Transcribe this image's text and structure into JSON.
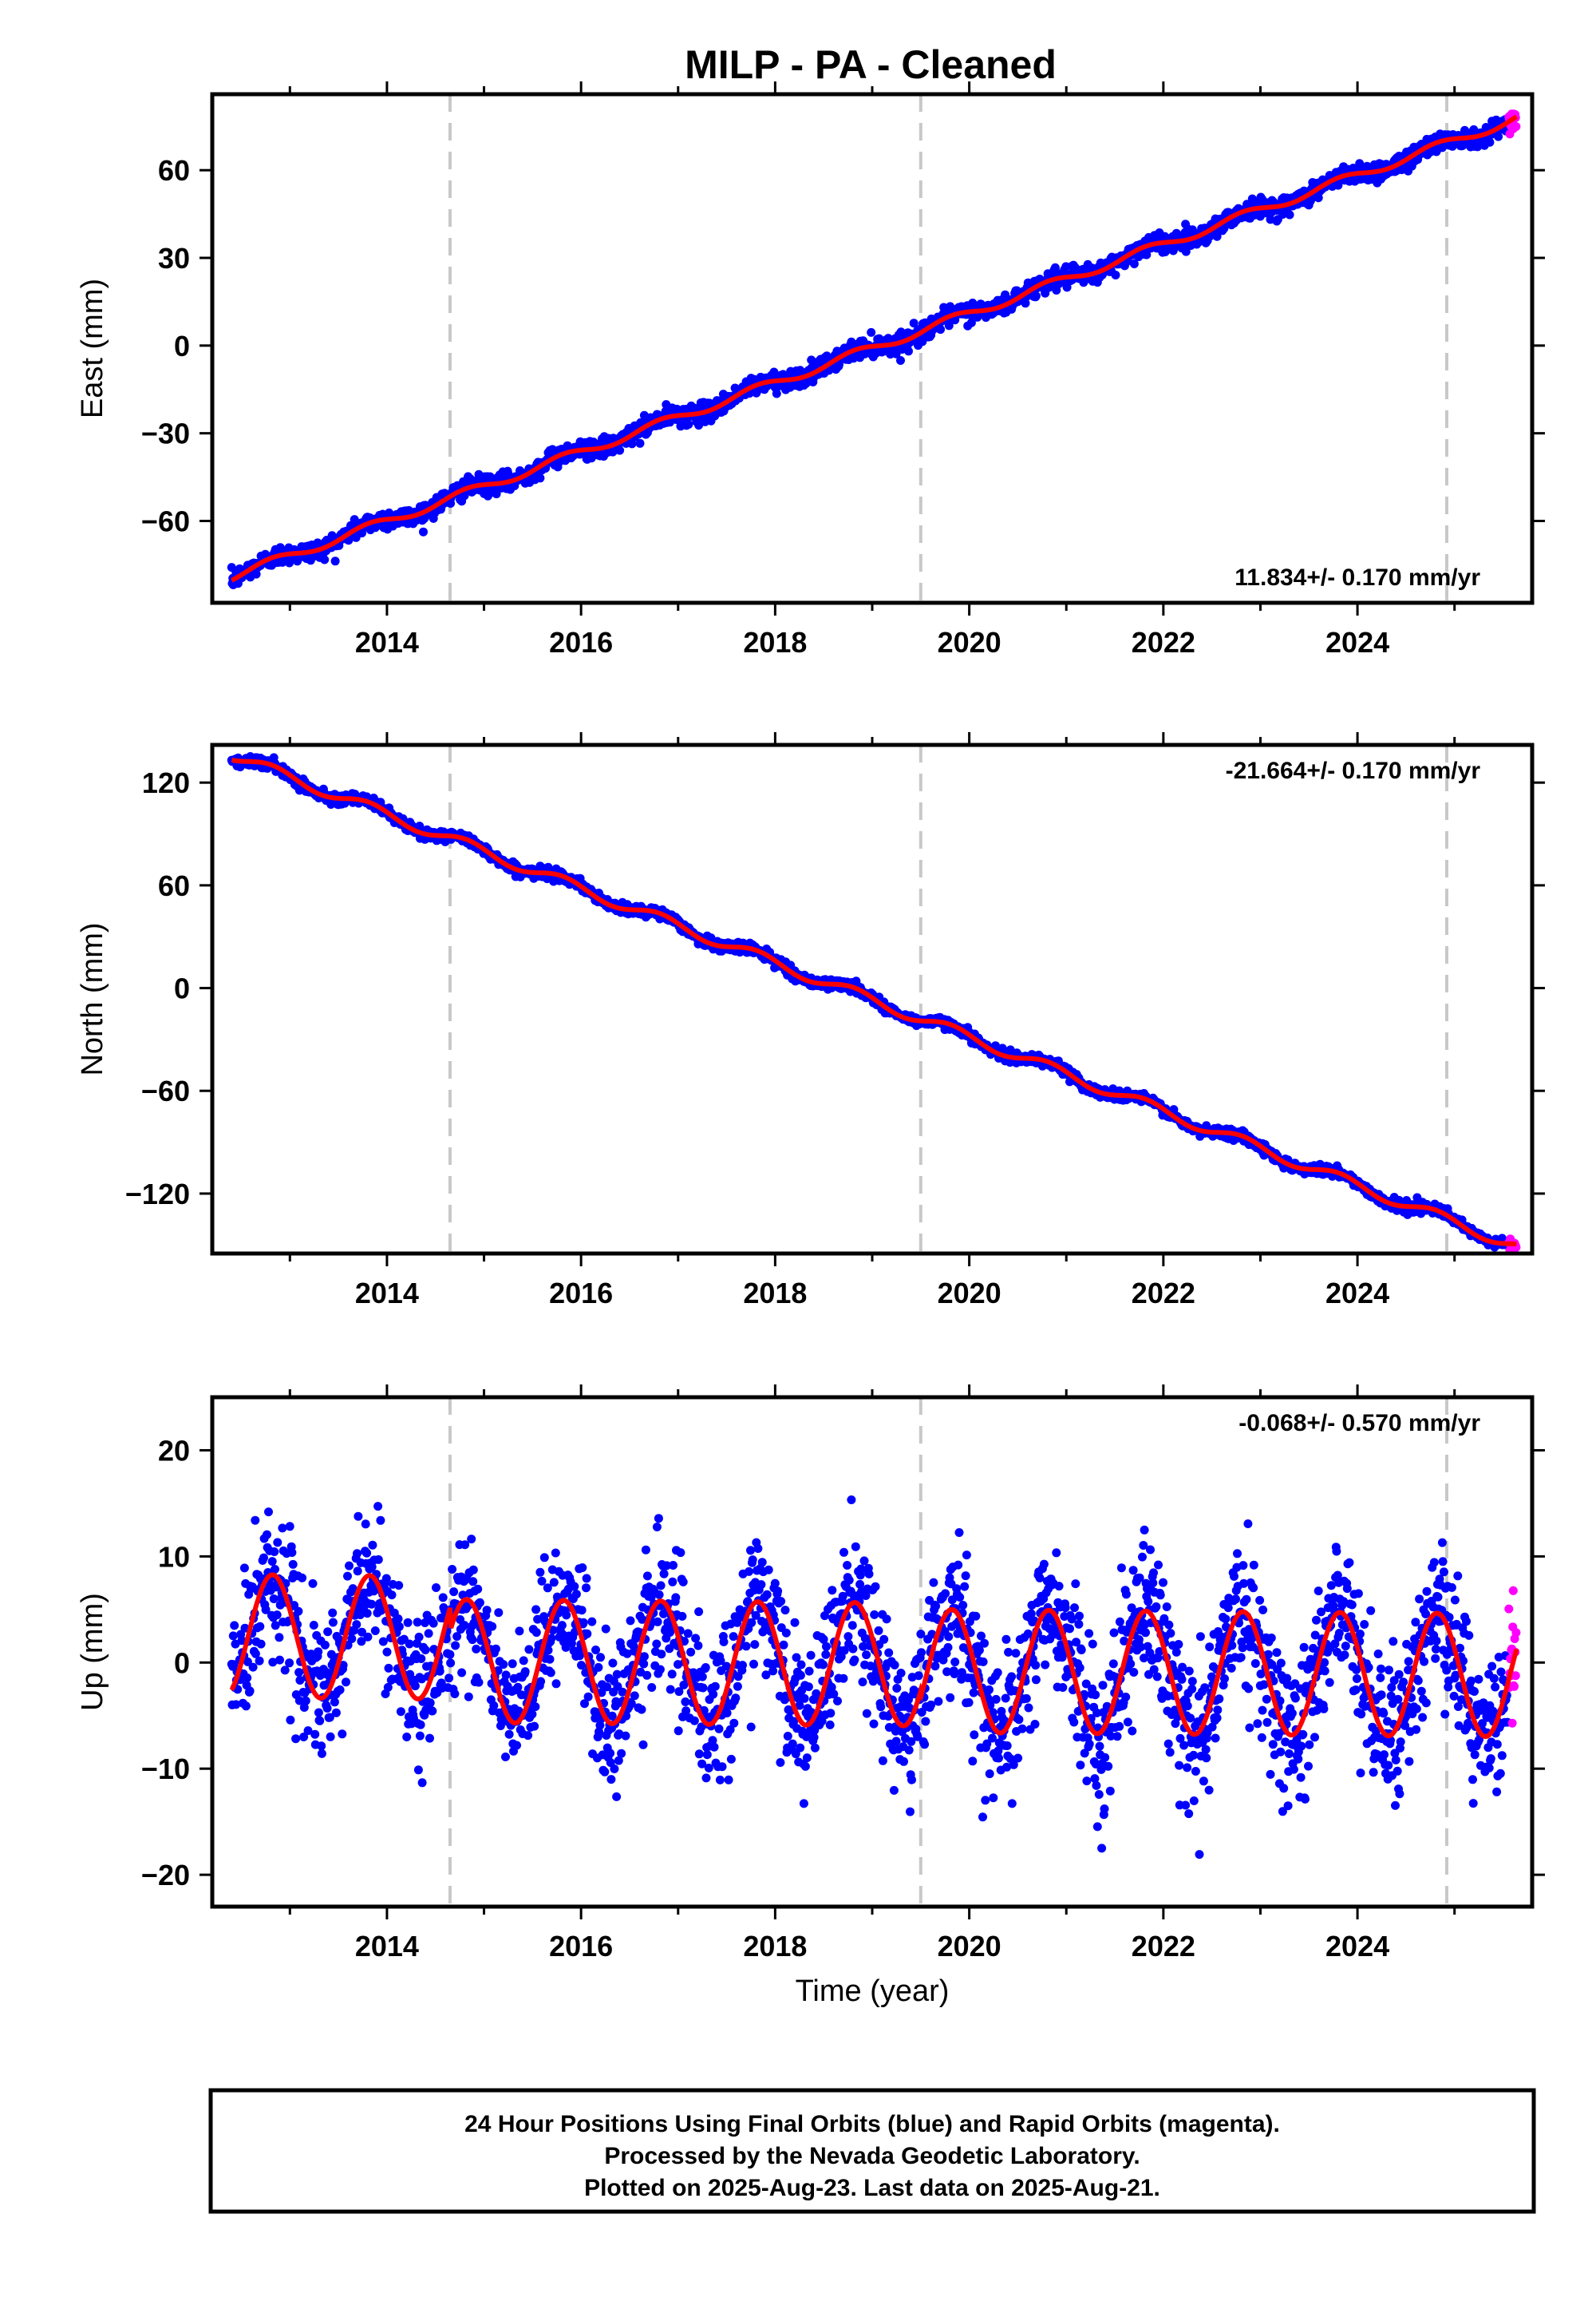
{
  "title": "MILP  - PA - Cleaned",
  "caption": {
    "lines": [
      "24 Hour Positions Using Final Orbits (blue) and Rapid Orbits (magenta).",
      "Processed by the Nevada Geodetic Laboratory.",
      "Plotted on 2025-Aug-23. Last data on 2025-Aug-21."
    ]
  },
  "colors": {
    "final_orbits": "#0000ff",
    "rapid_orbits": "#ff00ff",
    "model_fit": "#ff0000",
    "equipment_change_lines": "#c8c8c8"
  },
  "chart_data": [
    {
      "type": "scatter",
      "component": "east",
      "ylabel": "East (mm)",
      "xlabel": "",
      "rate": "11.834+/- 0.170 mm/yr",
      "rate_position": "bottom-right",
      "xlim": [
        2012.2,
        2025.8
      ],
      "ylim": [
        -88,
        86
      ],
      "x_ticks": [
        2014,
        2016,
        2018,
        2020,
        2022,
        2024
      ],
      "y_ticks": [
        -60,
        -30,
        0,
        30,
        60
      ],
      "dashed_lines_x": [
        2014.65,
        2019.5,
        2024.92
      ],
      "model": {
        "intercept_2012_4": -79,
        "slope": 11.834,
        "annual_amp": 1.5,
        "noise": 1.6,
        "offsets": []
      }
    },
    {
      "type": "scatter",
      "component": "north",
      "ylabel": "North (mm)",
      "xlabel": "",
      "rate": "-21.664+/- 0.170 mm/yr",
      "rate_position": "top-right",
      "xlim": [
        2012.2,
        2025.8
      ],
      "ylim": [
        -155,
        142
      ],
      "x_ticks": [
        2014,
        2016,
        2018,
        2020,
        2022,
        2024
      ],
      "y_ticks": [
        -120,
        -60,
        0,
        60,
        120
      ],
      "dashed_lines_x": [
        2014.65,
        2019.5,
        2024.92
      ],
      "model": {
        "intercept_2012_4": 136,
        "slope": -21.664,
        "annual_amp": 3.2,
        "noise": 1.5,
        "offsets": []
      }
    },
    {
      "type": "scatter",
      "component": "up",
      "ylabel": "Up (mm)",
      "xlabel": "Time (year)",
      "rate": "-0.068+/- 0.570 mm/yr",
      "rate_position": "top-right",
      "xlim": [
        2012.2,
        2025.8
      ],
      "ylim": [
        -23,
        25
      ],
      "x_ticks": [
        2014,
        2016,
        2018,
        2020,
        2022,
        2024
      ],
      "y_ticks": [
        -20,
        -10,
        0,
        10,
        20
      ],
      "dashed_lines_x": [
        2014.65,
        2019.5,
        2024.92
      ],
      "model": {
        "intercept_2012_4": 2.5,
        "slope": -0.068,
        "annual_amp": 5.8,
        "noise": 3.3,
        "offsets": [
          [
            2014.65,
            -2.2
          ],
          [
            2019.5,
            -0.6
          ]
        ]
      }
    }
  ]
}
